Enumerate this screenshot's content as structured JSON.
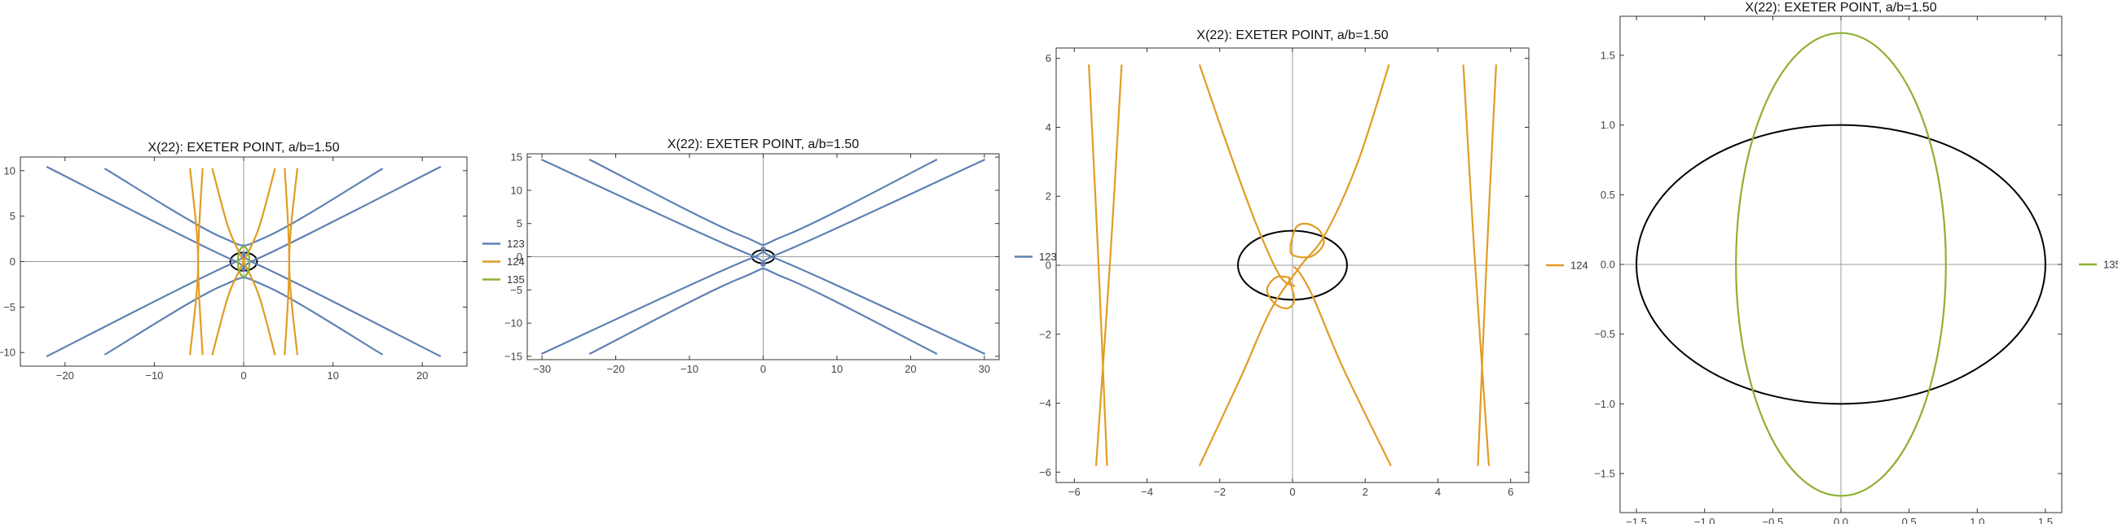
{
  "chart_data": [
    {
      "type": "line",
      "title": "X(22): EXETER POINT, a/b=1.50",
      "xlim": [
        -25,
        25
      ],
      "ylim": [
        -11.5,
        11.5
      ],
      "xticks": [
        -20,
        -10,
        0,
        10,
        20
      ],
      "xtick_labels": [
        "−20",
        "−10",
        "0",
        "10",
        "20"
      ],
      "yticks": [
        -10,
        -5,
        0,
        5,
        10
      ],
      "ytick_labels": [
        "−10",
        "−5",
        "0",
        "5",
        "10"
      ],
      "legend_position": "right",
      "legend": [
        {
          "label": "123",
          "color": "#5e81b5"
        },
        {
          "label": "124",
          "color": "#e19c24"
        },
        {
          "label": "135",
          "color": "#8fb032"
        }
      ],
      "ellipse": {
        "a": 1.5,
        "b": 1.0,
        "color": "#000000"
      },
      "series": [
        {
          "name": "123",
          "color": "#5e81b5",
          "segments": [
            [
              [
                -22,
                10.4
              ],
              [
                -1.5,
                0.3
              ],
              [
                1.5,
                0.3
              ],
              [
                22,
                10.4
              ]
            ],
            [
              [
                -22,
                -10.4
              ],
              [
                -1.5,
                -0.3
              ],
              [
                1.5,
                -0.3
              ],
              [
                22,
                -10.4
              ]
            ],
            [
              [
                -15.5,
                10.2
              ],
              [
                -2.5,
                2.7
              ],
              [
                2.5,
                2.7
              ],
              [
                15.5,
                10.2
              ]
            ],
            [
              [
                -15.5,
                -10.2
              ],
              [
                -2.5,
                -2.7
              ],
              [
                2.5,
                -2.7
              ],
              [
                15.5,
                -10.2
              ]
            ]
          ]
        },
        {
          "name": "124",
          "color": "#e19c24",
          "segments": [
            [
              [
                -6.0,
                -10.2
              ],
              [
                -5.1,
                0
              ],
              [
                -6.0,
                10.2
              ]
            ],
            [
              [
                -4.6,
                -10.2
              ],
              [
                -5.1,
                0
              ],
              [
                -4.6,
                10.2
              ]
            ],
            [
              [
                6.0,
                -10.2
              ],
              [
                5.1,
                0
              ],
              [
                6.0,
                10.2
              ]
            ],
            [
              [
                4.6,
                -10.2
              ],
              [
                5.1,
                0
              ],
              [
                4.6,
                10.2
              ]
            ],
            [
              [
                -3.5,
                -10.2
              ],
              [
                -1.8,
                -4
              ],
              [
                -0.5,
                -1
              ],
              [
                0.5,
                1
              ],
              [
                1.8,
                4
              ],
              [
                3.5,
                10.2
              ]
            ],
            [
              [
                -3.5,
                10.2
              ],
              [
                -1.8,
                4
              ],
              [
                -0.5,
                1
              ],
              [
                0.5,
                -1
              ],
              [
                1.8,
                -4
              ],
              [
                3.5,
                -10.2
              ]
            ]
          ]
        },
        {
          "name": "135",
          "color": "#8fb032",
          "ellipse": {
            "rx": 0.65,
            "ry": 1.65
          }
        }
      ]
    },
    {
      "type": "line",
      "title": "X(22): EXETER POINT, a/b=1.50",
      "xlim": [
        -32,
        32
      ],
      "ylim": [
        -15.5,
        15.5
      ],
      "xticks": [
        -30,
        -20,
        -10,
        0,
        10,
        20,
        30
      ],
      "xtick_labels": [
        "−30",
        "−20",
        "−10",
        "0",
        "10",
        "20",
        "30"
      ],
      "yticks": [
        -15,
        -10,
        -5,
        0,
        5,
        10,
        15
      ],
      "ytick_labels": [
        "−15",
        "−10",
        "−5",
        "0",
        "5",
        "10",
        "15"
      ],
      "legend_position": "right",
      "legend": [
        {
          "label": "123",
          "color": "#5e81b5"
        }
      ],
      "ellipse": {
        "a": 1.5,
        "b": 1.0,
        "color": "#000000"
      },
      "series": [
        {
          "name": "123",
          "color": "#5e81b5",
          "segments": [
            [
              [
                -30,
                14.6
              ],
              [
                -2.0,
                0.4
              ],
              [
                2.0,
                0.4
              ],
              [
                30,
                14.6
              ]
            ],
            [
              [
                -30,
                -14.6
              ],
              [
                -2.0,
                -0.4
              ],
              [
                2.0,
                -0.4
              ],
              [
                30,
                -14.6
              ]
            ],
            [
              [
                -23.5,
                14.6
              ],
              [
                -3.0,
                3.2
              ],
              [
                3.0,
                3.2
              ],
              [
                23.5,
                14.6
              ]
            ],
            [
              [
                -23.5,
                -14.6
              ],
              [
                -3.0,
                -3.2
              ],
              [
                3.0,
                -3.2
              ],
              [
                23.5,
                -14.6
              ]
            ]
          ]
        }
      ]
    },
    {
      "type": "line",
      "title": "X(22): EXETER POINT, a/b=1.50",
      "xlim": [
        -6.5,
        6.5
      ],
      "ylim": [
        -6.3,
        6.3
      ],
      "xticks": [
        -6,
        -4,
        -2,
        0,
        2,
        4,
        6
      ],
      "xtick_labels": [
        "−6",
        "−4",
        "−2",
        "0",
        "2",
        "4",
        "6"
      ],
      "yticks": [
        -6,
        -4,
        -2,
        0,
        2,
        4,
        6
      ],
      "ytick_labels": [
        "−6",
        "−4",
        "−2",
        "0",
        "2",
        "4",
        "6"
      ],
      "legend_position": "right",
      "legend": [
        {
          "label": "124",
          "color": "#e19c24"
        }
      ],
      "ellipse": {
        "a": 1.5,
        "b": 1.0,
        "color": "#000000"
      },
      "series": [
        {
          "name": "124",
          "color": "#e19c24",
          "segments": [
            [
              [
                -5.6,
                5.8
              ],
              [
                -5.35,
                0.4
              ],
              [
                -5.1,
                -5.8
              ]
            ],
            [
              [
                -4.7,
                5.8
              ],
              [
                -5.0,
                0.4
              ],
              [
                -5.4,
                -5.8
              ]
            ],
            [
              [
                5.6,
                5.8
              ],
              [
                5.35,
                0.4
              ],
              [
                5.1,
                -5.8
              ]
            ],
            [
              [
                4.7,
                5.8
              ],
              [
                5.0,
                0.4
              ],
              [
                5.4,
                -5.8
              ]
            ],
            [
              [
                -2.55,
                5.8
              ],
              [
                -1.8,
                3.5
              ],
              [
                -1.0,
                1.2
              ],
              [
                -0.35,
                -0.3
              ],
              [
                0.05,
                -0.6
              ]
            ],
            [
              [
                2.65,
                5.8
              ],
              [
                1.8,
                3.0
              ],
              [
                0.9,
                0.9
              ],
              [
                0.2,
                -0.05
              ],
              [
                -0.6,
                -1.3
              ],
              [
                -1.4,
                -3.2
              ],
              [
                -2.55,
                -5.8
              ]
            ],
            [
              [
                2.7,
                -5.8
              ],
              [
                1.4,
                -3.0
              ],
              [
                0.6,
                -1.0
              ],
              [
                0.25,
                -0.3
              ],
              [
                0.05,
                -0.05
              ]
            ],
            [
              [
                -0.05,
                0.6
              ],
              [
                0.1,
                1.1
              ],
              [
                0.4,
                1.2
              ],
              [
                0.75,
                1.0
              ],
              [
                0.85,
                0.6
              ],
              [
                0.5,
                0.25
              ],
              [
                0.0,
                0.3
              ],
              [
                -0.05,
                0.6
              ]
            ],
            [
              [
                -0.1,
                -0.35
              ],
              [
                0.05,
                -1.0
              ],
              [
                -0.15,
                -1.25
              ],
              [
                -0.5,
                -1.1
              ],
              [
                -0.7,
                -0.7
              ],
              [
                -0.45,
                -0.35
              ],
              [
                -0.1,
                -0.35
              ]
            ]
          ]
        }
      ]
    },
    {
      "type": "line",
      "title": "X(22): EXETER POINT, a/b=1.50",
      "xlim": [
        -1.62,
        1.62
      ],
      "ylim": [
        -1.78,
        1.78
      ],
      "xticks": [
        -1.5,
        -1.0,
        -0.5,
        0.0,
        0.5,
        1.0,
        1.5
      ],
      "xtick_labels": [
        "−1.5",
        "−1.0",
        "−0.5",
        "0.0",
        "0.5",
        "1.0",
        "1.5"
      ],
      "yticks": [
        -1.5,
        -1.0,
        -0.5,
        0.0,
        0.5,
        1.0,
        1.5
      ],
      "ytick_labels": [
        "−1.5",
        "−1.0",
        "−0.5",
        "0.0",
        "0.5",
        "1.0",
        "1.5"
      ],
      "legend_position": "right",
      "legend": [
        {
          "label": "135",
          "color": "#8fb032"
        }
      ],
      "ellipse": {
        "a": 1.5,
        "b": 1.0,
        "color": "#000000"
      },
      "series": [
        {
          "name": "135",
          "color": "#8fb032",
          "ellipse": {
            "rx": 0.77,
            "ry": 1.66
          }
        }
      ]
    }
  ]
}
